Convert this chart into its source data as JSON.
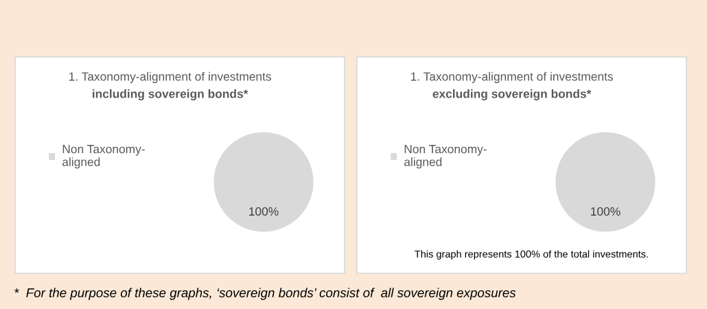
{
  "chart_data": [
    {
      "type": "pie",
      "title": "1. Taxonomy-alignment of investments",
      "subtitle": "including sovereign bonds*",
      "categories": [
        "Non Taxonomy-aligned"
      ],
      "values": [
        100
      ],
      "colors": [
        "#d9d9d9"
      ],
      "value_labels": [
        "100%"
      ],
      "legend": "left"
    },
    {
      "type": "pie",
      "title": "1. Taxonomy-alignment of investments",
      "subtitle": "excluding sovereign bonds*",
      "categories": [
        "Non Taxonomy-aligned"
      ],
      "values": [
        100
      ],
      "colors": [
        "#d9d9d9"
      ],
      "value_labels": [
        "100%"
      ],
      "legend": "left",
      "annotations": [
        "This graph represents 100% of the total investments.",
        "*  For the purpose of these graphs, ‘sovereign bonds’ consist of  all sovereign exposures"
      ]
    }
  ]
}
